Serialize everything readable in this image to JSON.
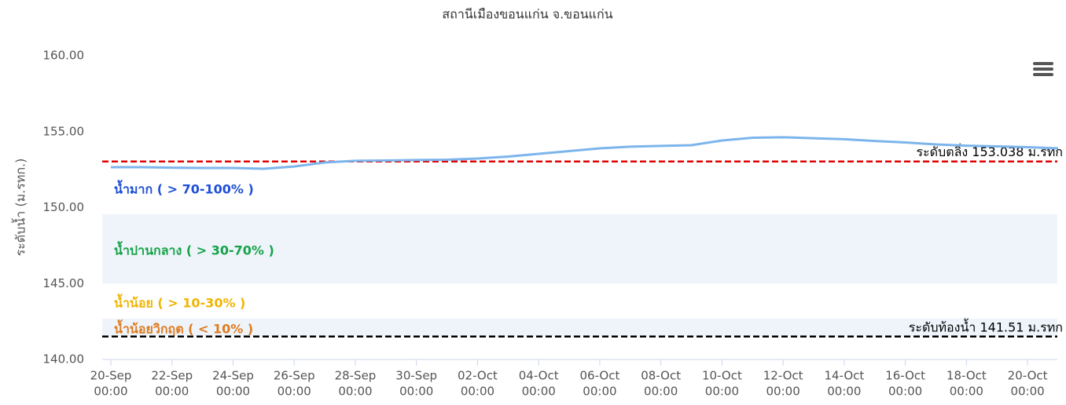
{
  "chart_data": {
    "type": "line",
    "title": "สถานีเมืองขอนแก่น จ.ขอนแก่น",
    "y_axis_label": "ระดับน้ำ (ม.รทก.)",
    "x": [
      "20-Sep 00:00",
      "21-Sep 00:00",
      "22-Sep 00:00",
      "23-Sep 00:00",
      "24-Sep 00:00",
      "25-Sep 00:00",
      "26-Sep 00:00",
      "27-Sep 00:00",
      "28-Sep 00:00",
      "29-Sep 00:00",
      "30-Sep 00:00",
      "01-Oct 00:00",
      "02-Oct 00:00",
      "03-Oct 00:00",
      "04-Oct 00:00",
      "05-Oct 00:00",
      "06-Oct 00:00",
      "07-Oct 00:00",
      "08-Oct 00:00",
      "09-Oct 00:00",
      "10-Oct 00:00",
      "11-Oct 00:00",
      "12-Oct 00:00",
      "13-Oct 00:00",
      "14-Oct 00:00",
      "15-Oct 00:00",
      "16-Oct 00:00",
      "17-Oct 00:00",
      "18-Oct 00:00",
      "19-Oct 00:00",
      "20-Oct 00:00",
      "21-Oct 00:00"
    ],
    "series": [
      {
        "color": "#7cb5ec",
        "values": [
          152.66,
          152.66,
          152.63,
          152.61,
          152.61,
          152.56,
          152.71,
          152.97,
          153.08,
          153.1,
          153.13,
          153.15,
          153.23,
          153.36,
          153.54,
          153.72,
          153.9,
          154.01,
          154.06,
          154.11,
          154.42,
          154.6,
          154.63,
          154.57,
          154.5,
          154.39,
          154.29,
          154.16,
          154.08,
          154.03,
          153.98,
          153.9
        ]
      }
    ],
    "xticks": [
      [
        "20-Sep",
        "00:00"
      ],
      [
        "22-Sep",
        "00:00"
      ],
      [
        "24-Sep",
        "00:00"
      ],
      [
        "26-Sep",
        "00:00"
      ],
      [
        "28-Sep",
        "00:00"
      ],
      [
        "30-Sep",
        "00:00"
      ],
      [
        "02-Oct",
        "00:00"
      ],
      [
        "04-Oct",
        "00:00"
      ],
      [
        "06-Oct",
        "00:00"
      ],
      [
        "08-Oct",
        "00:00"
      ],
      [
        "10-Oct",
        "00:00"
      ],
      [
        "12-Oct",
        "00:00"
      ],
      [
        "14-Oct",
        "00:00"
      ],
      [
        "16-Oct",
        "00:00"
      ],
      [
        "18-Oct",
        "00:00"
      ],
      [
        "20-Oct",
        "00:00"
      ]
    ],
    "ylim": [
      140,
      160
    ],
    "yticks": [
      {
        "value": 140,
        "label": "140.00"
      },
      {
        "value": 145,
        "label": "145.00"
      },
      {
        "value": 150,
        "label": "150.00"
      },
      {
        "value": 155,
        "label": "155.00"
      },
      {
        "value": 160,
        "label": "160.00"
      }
    ],
    "bands": [
      {
        "from": 145,
        "to": 149.56,
        "color": "#eef4fa"
      },
      {
        "from": 141.51,
        "to": 142.69,
        "color": "#eef4fa"
      }
    ],
    "zones": [
      {
        "label": "น้ำมาก ( > 70-100% )",
        "color": "#1f4fd8"
      },
      {
        "label": "น้ำปานกลาง ( > 30-70% )",
        "color": "#16a34a"
      },
      {
        "label": "น้ำน้อย ( > 10-30% )",
        "color": "#f0b400"
      },
      {
        "label": "น้ำน้อยวิกฤต ( < 10% )",
        "color": "#e07b20"
      }
    ],
    "plot_lines": [
      {
        "value": 153.038,
        "label": "ระดับตลิ่ง 153.038 ม.รทก",
        "color": "#e00000"
      },
      {
        "value": 141.51,
        "label": "ระดับท้องน้ำ 141.51 ม.รทก",
        "color": "#000000"
      }
    ]
  }
}
